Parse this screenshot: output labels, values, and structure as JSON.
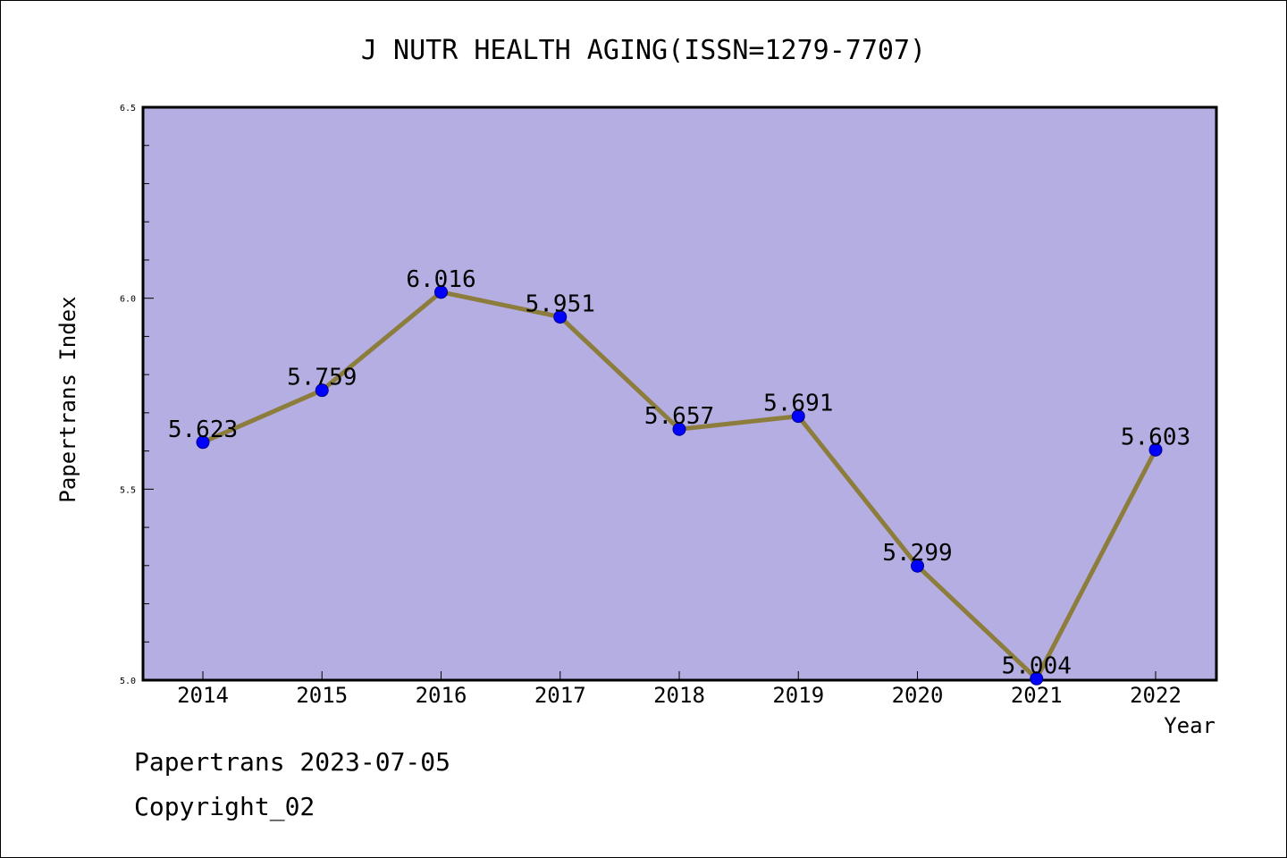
{
  "chart_data": {
    "type": "line",
    "title": "J NUTR HEALTH AGING(ISSN=1279-7707)",
    "xlabel": "Year",
    "ylabel": "Papertrans Index",
    "categories": [
      "2014",
      "2015",
      "2016",
      "2017",
      "2018",
      "2019",
      "2020",
      "2021",
      "2022"
    ],
    "values": [
      5.623,
      5.759,
      6.016,
      5.951,
      5.657,
      5.691,
      5.299,
      5.004,
      5.603
    ],
    "data_labels": [
      "5.623",
      "5.759",
      "6.016",
      "5.951",
      "5.657",
      "5.691",
      "5.299",
      "5.004",
      "5.603"
    ],
    "ylim": [
      5.0,
      6.5
    ],
    "yticks": [
      "5.0",
      "5.5",
      "6.0",
      "6.5"
    ],
    "plot_background": "#b5aee2",
    "line_color": "#8c7d3c",
    "marker_color": "#0000ff",
    "grid": false
  },
  "footer": {
    "line1": "Papertrans 2023-07-05",
    "line2": "Copyright_02"
  }
}
